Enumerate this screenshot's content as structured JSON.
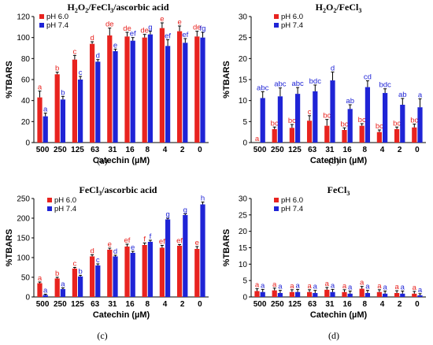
{
  "colors": {
    "ph6": "#e8231f",
    "ph74": "#1f24d6",
    "axis": "#000000",
    "error": "#000000"
  },
  "chart_data": [
    {
      "id": "a",
      "type": "bar",
      "title_main": "H",
      "title_s1": "2",
      "title_mid1": "O",
      "title_s2": "2",
      "title_mid2": "/FeCl",
      "title_s3": "3",
      "title_tail": "/ascorbic acid",
      "panel_label": "(a)",
      "xlabel": "Catechin (µM)",
      "ylabel": "%TBARS",
      "categories": [
        "500",
        "250",
        "125",
        "63",
        "31",
        "16",
        "8",
        "4",
        "2",
        "0"
      ],
      "ylim": [
        0,
        120
      ],
      "yticks": [
        0,
        20,
        40,
        60,
        80,
        100,
        120
      ],
      "legend": [
        "pH 6.0",
        "pH 7.4"
      ],
      "series": [
        {
          "name": "pH 6.0",
          "values": [
            43,
            65,
            79,
            94,
            102,
            101,
            100,
            109,
            106,
            101
          ],
          "errors": [
            6,
            2,
            4,
            2,
            7,
            4,
            3,
            5,
            5,
            5
          ],
          "sig": [
            "a",
            "b",
            "c",
            "d",
            "de",
            "de",
            "de",
            "e",
            "e",
            "de"
          ]
        },
        {
          "name": "pH 7.4",
          "values": [
            25,
            41,
            60,
            77,
            87,
            97,
            103,
            92,
            95,
            100
          ],
          "errors": [
            3,
            3,
            3,
            2,
            2,
            3,
            3,
            6,
            4,
            5
          ],
          "sig": [
            "a",
            "b",
            "c",
            "d",
            "e",
            "ef",
            "g",
            "ef",
            "ef",
            "fg"
          ]
        }
      ]
    },
    {
      "id": "b",
      "type": "bar",
      "title_main": "H",
      "title_s1": "2",
      "title_mid1": "O",
      "title_s2": "2",
      "title_mid2": "/FeCl",
      "title_s3": "3",
      "title_tail": "",
      "panel_label": "(b)",
      "xlabel": "Catechin (µM)",
      "ylabel": "%TBARS",
      "categories": [
        "500",
        "250",
        "125",
        "63",
        "31",
        "16",
        "8",
        "4",
        "2",
        "0"
      ],
      "ylim": [
        0,
        30
      ],
      "yticks": [
        0,
        5,
        10,
        15,
        20,
        25,
        30
      ],
      "legend": [
        "pH 6.0",
        "pH 7.4"
      ],
      "series": [
        {
          "name": "pH 6.0",
          "values": [
            0,
            3.2,
            3.5,
            5.2,
            4,
            3,
            4,
            2.5,
            3.2,
            3.6
          ],
          "errors": [
            0,
            0.5,
            0.8,
            1.2,
            1.5,
            0.5,
            0.5,
            0.5,
            0.5,
            0.8
          ],
          "sig": [
            "a",
            "bc",
            "bc",
            "c",
            "bc",
            "bc",
            "bc",
            "bc",
            "bc",
            "bc"
          ]
        },
        {
          "name": "pH 7.4",
          "values": [
            10.6,
            11,
            11.6,
            12.2,
            14.8,
            8,
            13.2,
            11.8,
            9,
            8.4
          ],
          "errors": [
            1.5,
            2,
            1.5,
            1.5,
            2,
            1,
            1.5,
            1,
            1.5,
            2
          ],
          "sig": [
            "abc",
            "abc",
            "abc",
            "bdc",
            "d",
            "ab",
            "cd",
            "bdc",
            "ab",
            "a"
          ]
        }
      ]
    },
    {
      "id": "c",
      "type": "bar",
      "title_main": "FeCl",
      "title_s1": "3",
      "title_mid1": "/ascorbic acid",
      "title_s2": "",
      "title_mid2": "",
      "title_s3": "",
      "title_tail": "",
      "panel_label": "(c)",
      "xlabel": "Catechin (µM)",
      "ylabel": "%TBARS",
      "categories": [
        "500",
        "250",
        "125",
        "63",
        "31",
        "16",
        "8",
        "4",
        "2",
        "0"
      ],
      "ylim": [
        0,
        250
      ],
      "yticks": [
        0,
        50,
        100,
        150,
        200,
        250
      ],
      "legend": [
        "pH 6.0",
        "pH 7.4"
      ],
      "series": [
        {
          "name": "pH 6.0",
          "values": [
            35,
            47,
            72,
            103,
            120,
            128,
            132,
            125,
            130,
            122
          ],
          "errors": [
            3,
            3,
            3,
            4,
            4,
            6,
            5,
            6,
            3,
            6
          ],
          "sig": [
            "a",
            "b",
            "c",
            "d",
            "e",
            "ef",
            "f",
            "ef",
            "ef",
            "e"
          ]
        },
        {
          "name": "pH 7.4",
          "values": [
            5,
            20,
            52,
            80,
            103,
            112,
            140,
            197,
            208,
            235
          ],
          "errors": [
            2,
            3,
            3,
            4,
            3,
            4,
            4,
            3,
            3,
            6
          ],
          "sig": [
            "a",
            "a",
            "b",
            "c",
            "d",
            "e",
            "f",
            "g",
            "g",
            "h"
          ]
        }
      ]
    },
    {
      "id": "d",
      "type": "bar",
      "title_main": "FeCl",
      "title_s1": "3",
      "title_mid1": "",
      "title_s2": "",
      "title_mid2": "",
      "title_s3": "",
      "title_tail": "",
      "panel_label": "(d)",
      "xlabel": "Catechin (µM)",
      "ylabel": "%TBARS",
      "categories": [
        "500",
        "250",
        "125",
        "63",
        "31",
        "16",
        "8",
        "4",
        "2",
        "0"
      ],
      "ylim": [
        0,
        30
      ],
      "yticks": [
        0,
        5,
        10,
        15,
        20,
        25,
        30
      ],
      "legend": [
        "pH 6.0",
        "pH 7.4"
      ],
      "series": [
        {
          "name": "pH 6.0",
          "values": [
            1.8,
            2,
            1.5,
            1.5,
            2.2,
            1.5,
            2.5,
            1.5,
            1.2,
            1
          ],
          "errors": [
            0.7,
            0.7,
            0.7,
            0.7,
            0.7,
            0.7,
            0.7,
            0.7,
            0.7,
            0.7
          ],
          "sig": [
            "a",
            "a",
            "a",
            "a",
            "a",
            "a",
            "a",
            "a",
            "a",
            "a"
          ]
        },
        {
          "name": "pH 7.4",
          "values": [
            1.5,
            1.2,
            1.5,
            1.2,
            1.5,
            1,
            1.2,
            1,
            1,
            0.5
          ],
          "errors": [
            0.8,
            0.8,
            0.8,
            0.8,
            0.8,
            0.8,
            0.8,
            0.8,
            0.8,
            0.5
          ],
          "sig": [
            "a",
            "a",
            "a",
            "a",
            "a",
            "a",
            "a",
            "a",
            "a",
            "a"
          ]
        }
      ]
    }
  ]
}
